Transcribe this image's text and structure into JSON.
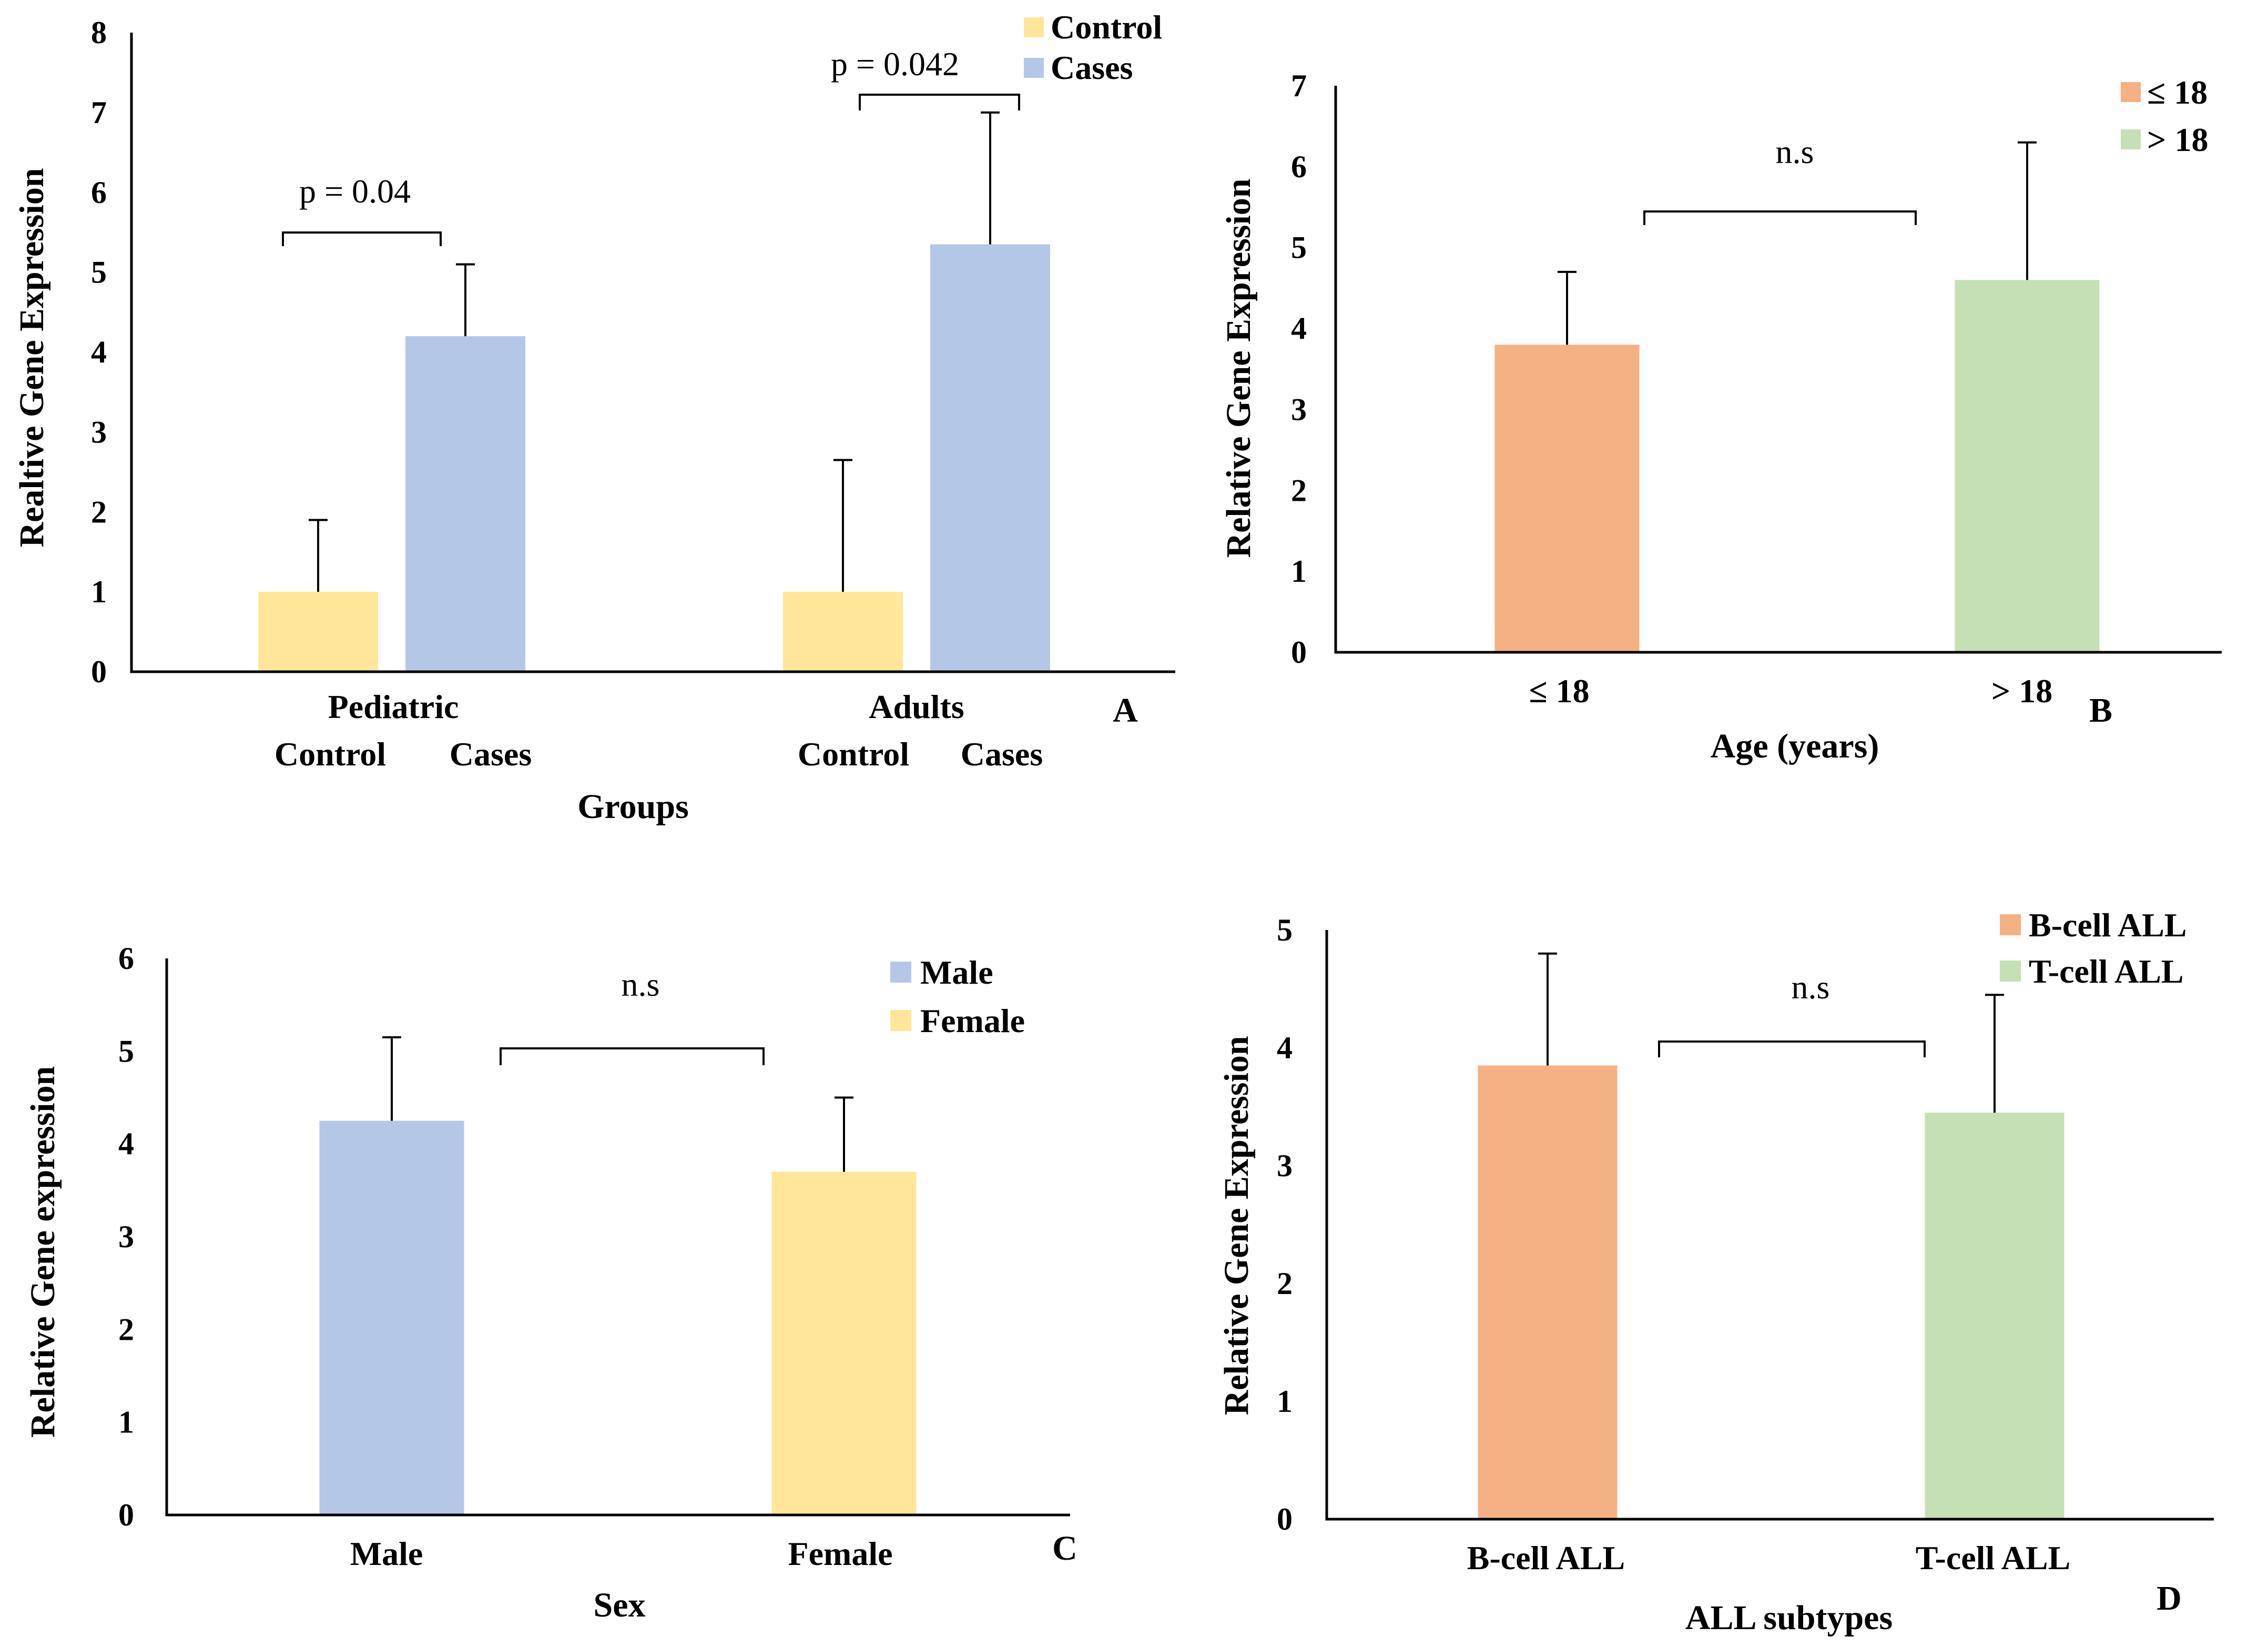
{
  "colors": {
    "control": "#ffe699",
    "cases": "#b4c7e7",
    "le18": "#f4b183",
    "gt18": "#c5e0b4",
    "male": "#b4c7e7",
    "female": "#ffe699",
    "bcell": "#f4b183",
    "tcell": "#c5e0b4"
  },
  "chart_data": [
    {
      "id": "A",
      "panel_letter": "A",
      "type": "bar",
      "ylabel": "Realtive Gene Expression",
      "xlabel": "Groups",
      "ylim": [
        0,
        8
      ],
      "yticks": [
        "0",
        "1",
        "2",
        "3",
        "4",
        "5",
        "6",
        "7",
        "8"
      ],
      "groups": [
        {
          "label": "Pediatric",
          "sublabels": [
            "Control",
            "Cases"
          ]
        },
        {
          "label": "Adults",
          "sublabels": [
            "Control",
            "Cases"
          ]
        }
      ],
      "series": [
        {
          "name": "Control",
          "color_key": "control",
          "values": [
            1.0,
            1.0
          ],
          "errors": [
            0.9,
            1.65
          ]
        },
        {
          "name": "Cases",
          "color_key": "cases",
          "values": [
            4.2,
            5.35
          ],
          "errors": [
            0.9,
            1.65
          ]
        }
      ],
      "annotations": [
        {
          "text": "p = 0.04",
          "group": 0
        },
        {
          "text": "p = 0.042",
          "group": 1
        }
      ],
      "legend": [
        "Control",
        "Cases"
      ]
    },
    {
      "id": "B",
      "panel_letter": "B",
      "type": "bar",
      "ylabel": "Relative Gene Expression",
      "xlabel": "Age (years)",
      "ylim": [
        0,
        7
      ],
      "yticks": [
        "0",
        "1",
        "2",
        "3",
        "4",
        "5",
        "6",
        "7"
      ],
      "categories": [
        "≤ 18",
        "> 18"
      ],
      "values": [
        3.8,
        4.6
      ],
      "errors": [
        0.9,
        1.7
      ],
      "color_keys": [
        "le18",
        "gt18"
      ],
      "annotation": "n.s",
      "legend": [
        "≤ 18",
        "> 18"
      ]
    },
    {
      "id": "C",
      "panel_letter": "C",
      "type": "bar",
      "ylabel": "Relative Gene expression",
      "xlabel": "Sex",
      "ylim": [
        0,
        6
      ],
      "yticks": [
        "0",
        "1",
        "2",
        "3",
        "4",
        "5",
        "6"
      ],
      "categories": [
        "Male",
        "Female"
      ],
      "values": [
        4.25,
        3.7
      ],
      "errors": [
        0.9,
        0.8
      ],
      "color_keys": [
        "male",
        "female"
      ],
      "annotation": "n.s",
      "legend": [
        "Male",
        "Female"
      ]
    },
    {
      "id": "D",
      "panel_letter": "D",
      "type": "bar",
      "ylabel": "Relative Gene Expression",
      "xlabel": "ALL subtypes",
      "ylim": [
        0,
        5
      ],
      "yticks": [
        "0",
        "1",
        "2",
        "3",
        "4",
        "5"
      ],
      "categories": [
        "B-cell ALL",
        "T-cell ALL"
      ],
      "values": [
        3.85,
        3.45
      ],
      "errors": [
        0.95,
        1.0
      ],
      "color_keys": [
        "bcell",
        "tcell"
      ],
      "annotation": "n.s",
      "legend": [
        "B-cell ALL",
        "T-cell ALL"
      ]
    }
  ]
}
